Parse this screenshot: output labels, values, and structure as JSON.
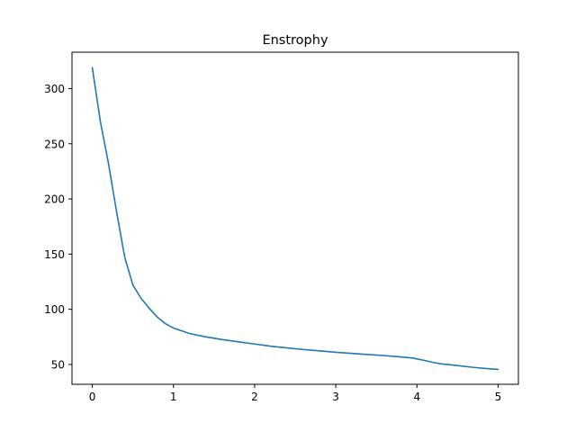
{
  "chart_data": {
    "type": "line",
    "title": "Enstrophy",
    "xlabel": "",
    "ylabel": "",
    "xlim": [
      -0.25,
      5.25
    ],
    "ylim": [
      32,
      333
    ],
    "xticks": [
      0,
      1,
      2,
      3,
      4,
      5
    ],
    "xtick_labels": [
      "0",
      "1",
      "2",
      "3",
      "4",
      "5"
    ],
    "yticks": [
      50,
      100,
      150,
      200,
      250,
      300
    ],
    "ytick_labels": [
      "50",
      "100",
      "150",
      "200",
      "250",
      "300"
    ],
    "grid": false,
    "series": [
      {
        "color": "#1f77b4",
        "x": [
          0.0,
          0.1,
          0.2,
          0.3,
          0.4,
          0.5,
          0.6,
          0.7,
          0.8,
          0.9,
          1.0,
          1.2,
          1.4,
          1.6,
          1.8,
          2.0,
          2.2,
          2.4,
          2.6,
          2.8,
          3.0,
          3.2,
          3.4,
          3.6,
          3.8,
          3.95,
          4.0,
          4.1,
          4.2,
          4.3,
          4.5,
          4.7,
          4.9,
          5.0
        ],
        "y": [
          319,
          270,
          232,
          188,
          147,
          122,
          110,
          101,
          93,
          87,
          83,
          78,
          75,
          72.5,
          70.5,
          68.5,
          66.5,
          65,
          63.5,
          62.3,
          61,
          60,
          59,
          58,
          56.8,
          55.8,
          55,
          53.5,
          51.8,
          50.5,
          49,
          47.3,
          46,
          45.5
        ]
      }
    ]
  }
}
